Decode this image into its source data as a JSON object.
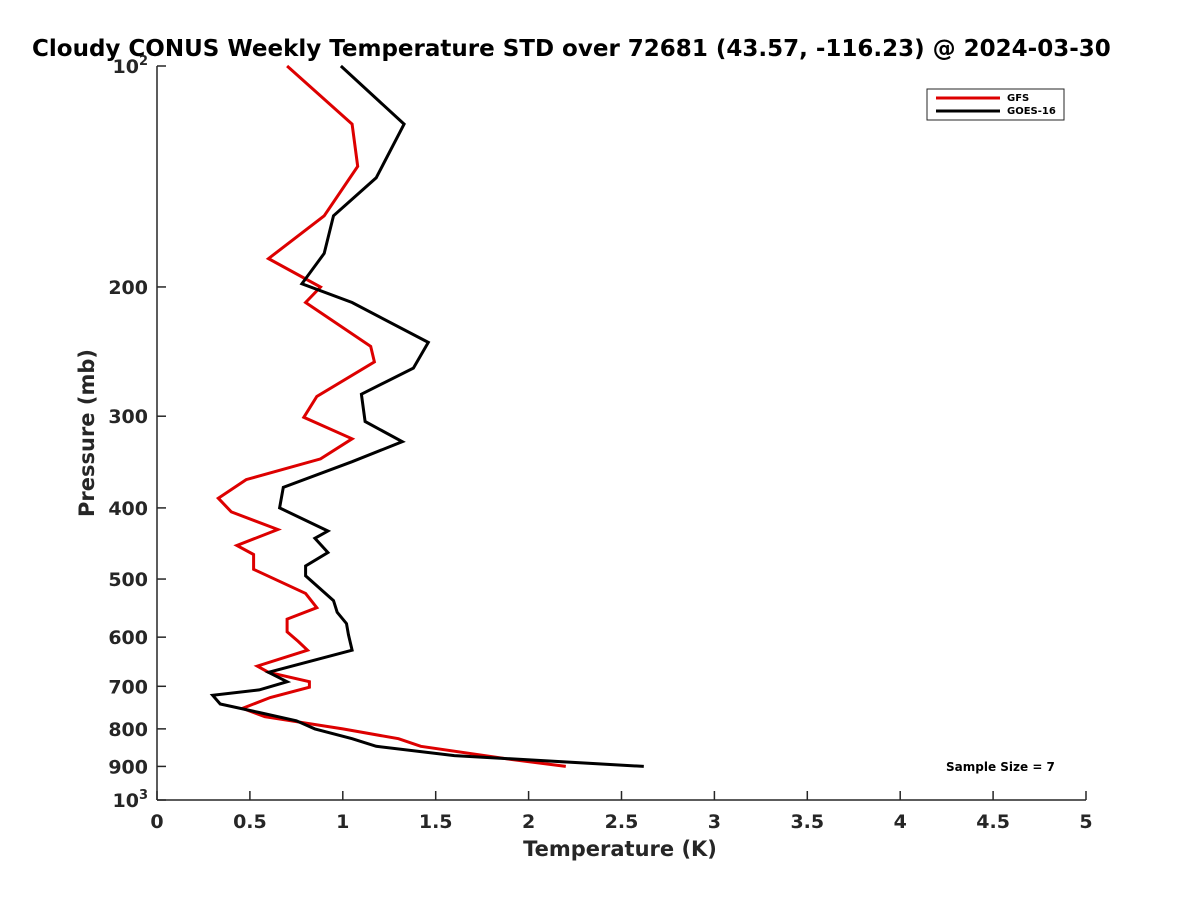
{
  "chart_data": {
    "type": "line",
    "title": "Cloudy CONUS Weekly Temperature STD over 72681 (43.57, -116.23) @ 2024-03-30",
    "xlabel": "Temperature (K)",
    "ylabel": "Pressure (mb)",
    "xlim": [
      0,
      5
    ],
    "ylim": [
      100,
      1000
    ],
    "y_scale": "log",
    "y_reversed": true,
    "x_ticks": [
      "0",
      "0.5",
      "1",
      "1.5",
      "2",
      "2.5",
      "3",
      "3.5",
      "4",
      "4.5",
      "5"
    ],
    "x_tick_values": [
      0,
      0.5,
      1,
      1.5,
      2,
      2.5,
      3,
      3.5,
      4,
      4.5,
      5
    ],
    "y_ticks": [
      {
        "value": 100,
        "base": "10",
        "exp": "2"
      },
      {
        "value": 200,
        "label": "200"
      },
      {
        "value": 300,
        "label": "300"
      },
      {
        "value": 400,
        "label": "400"
      },
      {
        "value": 500,
        "label": "500"
      },
      {
        "value": 600,
        "label": "600"
      },
      {
        "value": 700,
        "label": "700"
      },
      {
        "value": 800,
        "label": "800"
      },
      {
        "value": 900,
        "label": "900"
      },
      {
        "value": 1000,
        "base": "10",
        "exp": "3"
      }
    ],
    "grid": false,
    "legend_position": "top-right",
    "annotation": "Sample Size = 7",
    "series": [
      {
        "name": "GFS",
        "color": "#dd0000",
        "points": [
          [
            0.7,
            100
          ],
          [
            1.05,
            120
          ],
          [
            1.08,
            137
          ],
          [
            0.9,
            160
          ],
          [
            0.6,
            183
          ],
          [
            0.88,
            200
          ],
          [
            0.8,
            210
          ],
          [
            1.15,
            241
          ],
          [
            1.17,
            253
          ],
          [
            0.86,
            282
          ],
          [
            0.79,
            301
          ],
          [
            1.05,
            322
          ],
          [
            0.88,
            343
          ],
          [
            0.48,
            366
          ],
          [
            0.33,
            388
          ],
          [
            0.4,
            405
          ],
          [
            0.65,
            428
          ],
          [
            0.43,
            450
          ],
          [
            0.52,
            463
          ],
          [
            0.52,
            485
          ],
          [
            0.8,
            523
          ],
          [
            0.86,
            547
          ],
          [
            0.7,
            567
          ],
          [
            0.7,
            590
          ],
          [
            0.76,
            608
          ],
          [
            0.81,
            625
          ],
          [
            0.54,
            657
          ],
          [
            0.6,
            670
          ],
          [
            0.82,
            690
          ],
          [
            0.82,
            702
          ],
          [
            0.61,
            725
          ],
          [
            0.46,
            750
          ],
          [
            0.58,
            770
          ],
          [
            1.0,
            800
          ],
          [
            1.3,
            825
          ],
          [
            1.42,
            845
          ],
          [
            1.9,
            880
          ],
          [
            2.2,
            900
          ]
        ]
      },
      {
        "name": "GOES-16",
        "color": "#000000",
        "points": [
          [
            0.99,
            100
          ],
          [
            1.33,
            120
          ],
          [
            1.18,
            142
          ],
          [
            0.95,
            160
          ],
          [
            0.9,
            180
          ],
          [
            0.78,
            198
          ],
          [
            1.05,
            210
          ],
          [
            1.46,
            238
          ],
          [
            1.38,
            258
          ],
          [
            1.1,
            280
          ],
          [
            1.12,
            305
          ],
          [
            1.32,
            325
          ],
          [
            1.05,
            346
          ],
          [
            0.68,
            375
          ],
          [
            0.66,
            400
          ],
          [
            0.92,
            430
          ],
          [
            0.85,
            440
          ],
          [
            0.92,
            460
          ],
          [
            0.8,
            480
          ],
          [
            0.8,
            495
          ],
          [
            0.95,
            535
          ],
          [
            0.97,
            555
          ],
          [
            1.02,
            575
          ],
          [
            1.03,
            595
          ],
          [
            1.05,
            625
          ],
          [
            0.6,
            670
          ],
          [
            0.7,
            690
          ],
          [
            0.55,
            708
          ],
          [
            0.3,
            720
          ],
          [
            0.34,
            740
          ],
          [
            0.55,
            760
          ],
          [
            0.75,
            780
          ],
          [
            0.85,
            800
          ],
          [
            1.05,
            825
          ],
          [
            1.18,
            845
          ],
          [
            1.6,
            870
          ],
          [
            2.62,
            900
          ]
        ]
      }
    ]
  }
}
